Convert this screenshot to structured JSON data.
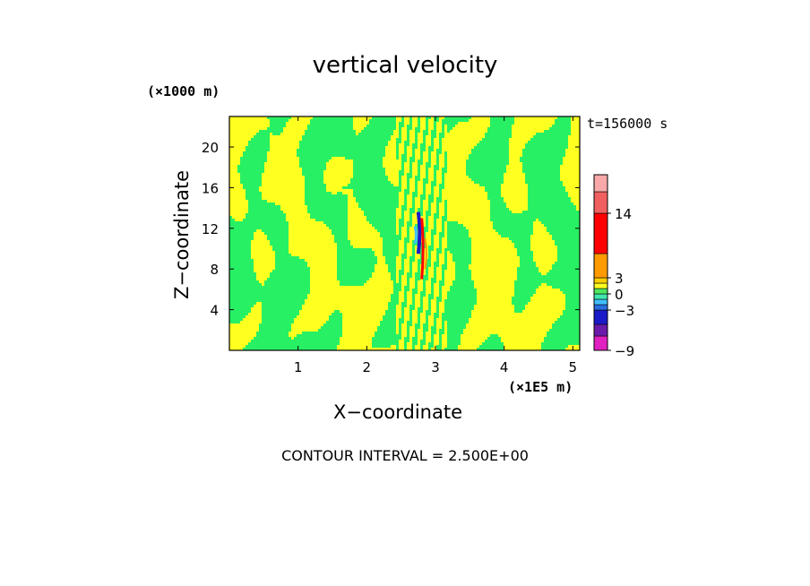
{
  "chart_data": {
    "type": "heatmap",
    "title": "vertical velocity",
    "xlabel": "X−coordinate",
    "ylabel": "Z−coordinate",
    "x_unit_label": "(×1E5 m)",
    "y_unit_label": "(×1000 m)",
    "time_label": "t=156000 s",
    "footer": "CONTOUR INTERVAL = 2.500E+00",
    "xlim": [
      0,
      5.1
    ],
    "ylim": [
      0,
      23
    ],
    "x_ticks": [
      "1",
      "2",
      "3",
      "4",
      "5"
    ],
    "x_tick_values": [
      1,
      2,
      3,
      4,
      5
    ],
    "y_ticks": [
      "4",
      "8",
      "12",
      "16",
      "20"
    ],
    "y_tick_values": [
      4,
      8,
      12,
      16,
      20
    ],
    "colorbar": {
      "levels": [
        -9,
        -6.5,
        -5,
        -3,
        -2,
        -1,
        0,
        1,
        2,
        3,
        9,
        14,
        18,
        22
      ],
      "colors": [
        "#e020c0",
        "#6a1aa8",
        "#1a1ac8",
        "#2a6ee0",
        "#40c0ff",
        "#40e8b0",
        "#50e860",
        "#ffff20",
        "#ffd000",
        "#ff9a00",
        "#ff0000",
        "#f06060",
        "#f8a8a8",
        "#ffc8c8"
      ],
      "tick_labels": [
        "14",
        "3",
        "0",
        "−3",
        "−9"
      ],
      "tick_values": [
        14,
        3,
        0,
        -3,
        -9
      ]
    },
    "field_colors": {
      "positive": "#ffff20",
      "near_zero": "#28f064",
      "updraft": "#ff0000",
      "downdraft": "#1a1ac8"
    }
  }
}
